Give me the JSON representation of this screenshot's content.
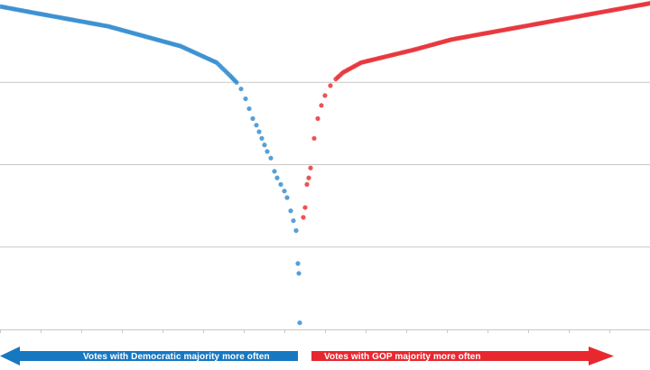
{
  "chart_data": {
    "type": "scatter",
    "title": "",
    "xlabel": "",
    "ylabel": "",
    "ylim": [
      0,
      1
    ],
    "grid": true,
    "series": [
      {
        "color": "#3a8fd1",
        "x": [
          1,
          40,
          80,
          120,
          160,
          200,
          240,
          255,
          262,
          267,
          272,
          276,
          280,
          284,
          287,
          290,
          293,
          296,
          300,
          304,
          307,
          311,
          315,
          318,
          322,
          325,
          328,
          330,
          331,
          332
        ],
        "y": [
          0.98,
          0.96,
          0.94,
          0.92,
          0.89,
          0.86,
          0.81,
          0.77,
          0.75,
          0.73,
          0.7,
          0.67,
          0.64,
          0.62,
          0.6,
          0.58,
          0.56,
          0.54,
          0.52,
          0.48,
          0.46,
          0.44,
          0.42,
          0.4,
          0.36,
          0.33,
          0.3,
          0.2,
          0.17,
          0.02
        ]
      },
      {
        "color": "#e8353c",
        "x": [
          336,
          338,
          340,
          342,
          344,
          348,
          352,
          356,
          360,
          366,
          372,
          380,
          400,
          430,
          460,
          500,
          540,
          580,
          620,
          660,
          700,
          720
        ],
        "y": [
          0.34,
          0.37,
          0.44,
          0.46,
          0.49,
          0.58,
          0.64,
          0.68,
          0.71,
          0.74,
          0.76,
          0.78,
          0.81,
          0.83,
          0.85,
          0.88,
          0.9,
          0.92,
          0.94,
          0.96,
          0.98,
          0.99
        ]
      }
    ]
  },
  "arrows": {
    "left": {
      "label": "Votes with Democratic majority more often",
      "color": "#1778c2"
    },
    "right": {
      "label": "Votes with GOP majority more often",
      "color": "#e8282f"
    }
  }
}
